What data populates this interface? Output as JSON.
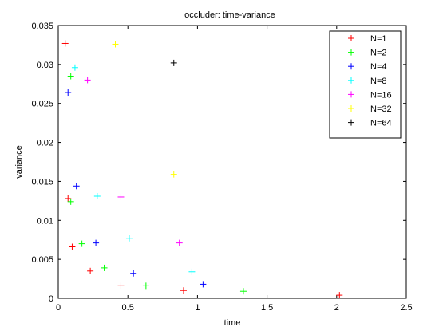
{
  "chart_data": {
    "type": "scatter",
    "title": "occluder: time-variance",
    "xlabel": "time",
    "ylabel": "variance",
    "xlim": [
      0,
      2.5
    ],
    "ylim": [
      0,
      0.035
    ],
    "xticks": [
      0,
      0.5,
      1,
      1.5,
      2,
      2.5
    ],
    "xtick_labels": [
      "0",
      "0.5",
      "1",
      "1.5",
      "2",
      "2.5"
    ],
    "yticks": [
      0,
      0.005,
      0.01,
      0.015,
      0.02,
      0.025,
      0.03,
      0.035
    ],
    "ytick_labels": [
      "0",
      "0.005",
      "0.01",
      "0.015",
      "0.02",
      "0.025",
      "0.03",
      "0.035"
    ],
    "grid": false,
    "legend_position": "top-right",
    "marker": "plus",
    "series": [
      {
        "name": "N=1",
        "color": "#ff0000",
        "points": [
          [
            0.05,
            0.0327
          ],
          [
            0.07,
            0.0128
          ],
          [
            0.1,
            0.0066
          ],
          [
            0.23,
            0.0035
          ],
          [
            0.45,
            0.0016
          ],
          [
            0.9,
            0.001
          ],
          [
            2.02,
            0.0004
          ]
        ]
      },
      {
        "name": "N=2",
        "color": "#00ff00",
        "points": [
          [
            0.09,
            0.0285
          ],
          [
            0.09,
            0.0124
          ],
          [
            0.17,
            0.007
          ],
          [
            0.33,
            0.0039
          ],
          [
            0.63,
            0.0016
          ],
          [
            1.33,
            0.0009
          ]
        ]
      },
      {
        "name": "N=4",
        "color": "#0000ff",
        "points": [
          [
            0.07,
            0.0264
          ],
          [
            0.13,
            0.0144
          ],
          [
            0.27,
            0.0071
          ],
          [
            0.54,
            0.0032
          ],
          [
            1.04,
            0.0018
          ]
        ]
      },
      {
        "name": "N=8",
        "color": "#00ffff",
        "points": [
          [
            0.12,
            0.0296
          ],
          [
            0.28,
            0.0131
          ],
          [
            0.51,
            0.0077
          ],
          [
            0.96,
            0.0034
          ]
        ]
      },
      {
        "name": "N=16",
        "color": "#ff00ff",
        "points": [
          [
            0.21,
            0.028
          ],
          [
            0.45,
            0.013
          ],
          [
            0.87,
            0.0071
          ]
        ]
      },
      {
        "name": "N=32",
        "color": "#ffff00",
        "points": [
          [
            0.41,
            0.0326
          ],
          [
            0.83,
            0.0159
          ]
        ]
      },
      {
        "name": "N=64",
        "color": "#000000",
        "points": [
          [
            0.83,
            0.0302
          ]
        ]
      }
    ]
  }
}
